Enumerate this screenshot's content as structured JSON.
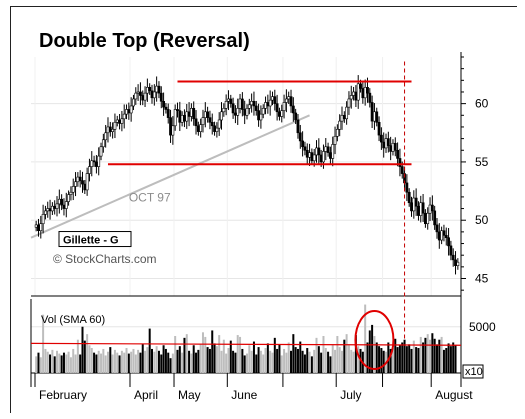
{
  "chart_data": {
    "type": "candlestick",
    "title": "Double Top (Reversal)",
    "symbol_label": "Gillette - G",
    "credit": "© StockCharts.com",
    "trendline_label": "OCT 97",
    "volume_label": "Vol (SMA 60)",
    "volume_tick": "5000",
    "volume_multiplier": "x10",
    "months": [
      "February",
      "April",
      "May",
      "June",
      "July",
      "August"
    ],
    "y_ticks": [
      45,
      50,
      55,
      60
    ],
    "y_range": [
      43.5,
      64
    ],
    "resistance_level": 61.9,
    "support_level": 54.8,
    "trendline": {
      "from_bar": 0,
      "from_value": 48.5,
      "to_bar": 118,
      "to_value": 59.0
    },
    "volume_sma": 3200,
    "volume_range": [
      0,
      8000
    ],
    "colors": {
      "resistance": "#e00000",
      "support": "#e00000",
      "volume_sma": "#e00000",
      "trendline": "#bdbdbd",
      "highlight_circle": "#e00000",
      "up_volume": "#bdbdbd",
      "down_volume": "#000000"
    },
    "prices": [
      49.6,
      49.1,
      49.7,
      50.5,
      50.8,
      51.0,
      50.8,
      51.2,
      51.0,
      51.4,
      51.8,
      51.3,
      51.0,
      51.6,
      52.2,
      52.4,
      52.9,
      53.3,
      53.7,
      53.4,
      53.1,
      52.6,
      54.0,
      54.6,
      55.1,
      55.0,
      54.6,
      55.5,
      56.3,
      56.9,
      57.5,
      58.0,
      57.6,
      57.8,
      58.4,
      58.6,
      58.3,
      58.7,
      59.1,
      59.5,
      59.2,
      59.8,
      60.4,
      60.9,
      61.0,
      60.7,
      60.3,
      60.9,
      61.4,
      61.1,
      60.5,
      61.0,
      61.5,
      60.9,
      60.2,
      59.7,
      59.5,
      58.8,
      57.3,
      58.1,
      59.5,
      59.4,
      58.4,
      59.0,
      58.5,
      59.3,
      58.9,
      59.6,
      58.7,
      58.1,
      57.6,
      58.2,
      58.8,
      59.3,
      58.8,
      58.4,
      58.1,
      57.6,
      57.9,
      58.6,
      59.3,
      59.6,
      60.2,
      60.4,
      60.0,
      59.2,
      59.0,
      59.6,
      60.4,
      59.5,
      59.0,
      59.6,
      59.9,
      60.2,
      59.8,
      59.4,
      58.6,
      59.1,
      59.6,
      60.1,
      59.8,
      60.3,
      60.6,
      60.0,
      59.3,
      58.9,
      59.4,
      60.1,
      60.4,
      60.6,
      59.8,
      59.2,
      58.6,
      57.5,
      56.8,
      56.3,
      56.0,
      55.4,
      55.8,
      55.1,
      55.6,
      56.2,
      55.6,
      55.0,
      55.9,
      56.3,
      55.8,
      55.3,
      56.5,
      57.2,
      57.8,
      58.5,
      59.0,
      58.7,
      59.7,
      60.4,
      60.7,
      61.0,
      60.3,
      61.7,
      61.3,
      60.5,
      61.4,
      60.9,
      60.1,
      58.5,
      59.3,
      58.4,
      57.3,
      56.7,
      56.2,
      57.0,
      56.4,
      55.9,
      56.6,
      56.0,
      55.3,
      54.6,
      54.0,
      53.2,
      52.4,
      51.5,
      50.8,
      51.9,
      51.2,
      50.4,
      51.5,
      50.6,
      49.7,
      50.6,
      51.3,
      50.8,
      49.6,
      49.0,
      48.3,
      49.1,
      48.7,
      48.5,
      47.8,
      47.0,
      46.6,
      46.1,
      46.4
    ],
    "volumes": [
      1800,
      2200,
      1700,
      6300,
      2600,
      2300,
      2000,
      2500,
      1800,
      2400,
      2100,
      1900,
      2200,
      2000,
      2300,
      1700,
      2600,
      2000,
      3600,
      2000,
      5000,
      3500,
      4200,
      3000,
      2700,
      2200,
      2000,
      2400,
      2100,
      2600,
      1900,
      2300,
      2800,
      2000,
      2500,
      2200,
      1900,
      2400,
      2200,
      2700,
      2100,
      2300,
      2600,
      2000,
      2500,
      2200,
      3100,
      2400,
      2800,
      4800,
      2600,
      2300,
      2900,
      2400,
      2000,
      3000,
      2600,
      2200,
      1600,
      2100,
      4000,
      2500,
      2900,
      2200,
      3800,
      4200,
      2400,
      2100,
      3000,
      2200,
      2500,
      3100,
      4400,
      3900,
      2800,
      2600,
      4600,
      3200,
      2900,
      4100,
      2400,
      3600,
      2100,
      2700,
      3500,
      2400,
      2200,
      4100,
      3900,
      2600,
      1900,
      2100,
      3000,
      2400,
      3400,
      2000,
      2800,
      2400,
      2000,
      2700,
      3200,
      2400,
      2200,
      3800,
      2600,
      3100,
      1900,
      2600,
      2200,
      3300,
      2400,
      4200,
      2800,
      2600,
      3400,
      2400,
      2000,
      2700,
      2300,
      1800,
      2500,
      3800,
      2900,
      2200,
      4000,
      2700,
      2300,
      1800,
      3100,
      2500,
      4000,
      2800,
      2400,
      3600,
      4200,
      3000,
      2500,
      2300,
      4100,
      2900,
      2600,
      2300,
      7400,
      3300,
      4600,
      5200,
      4000,
      3300,
      2900,
      2700,
      2400,
      2300,
      3300,
      2600,
      2700,
      3700,
      2800,
      3000,
      3300,
      3600,
      2900,
      3100,
      2600,
      3500,
      2800,
      2700,
      3900,
      3300,
      3800,
      4200,
      3600,
      4300,
      3700,
      3100,
      3600,
      3900,
      2500,
      2700,
      3200,
      2900,
      3300,
      3000
    ]
  }
}
